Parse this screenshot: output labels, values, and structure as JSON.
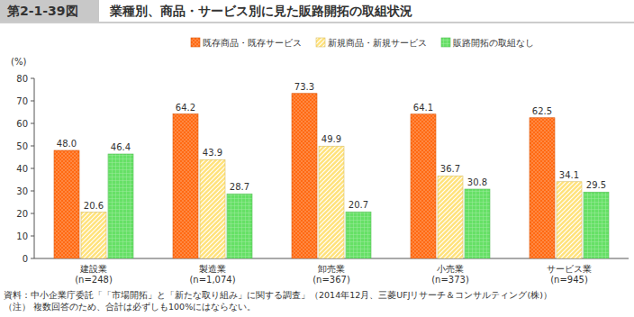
{
  "chart_data": {
    "type": "bar",
    "figure_label": "第2-1-39図",
    "title": "業種別、商品・サービス別に見た販路開拓の取組状況",
    "ylabel": "(%)",
    "categories": [
      "建設業\n(n=248)",
      "製造業\n(n=1,074)",
      "卸売業\n(n=367)",
      "小売業\n(n=373)",
      "サービス業\n(n=945)"
    ],
    "series": [
      {
        "name": "既存商品・既存サービス",
        "color": "#ff6a13",
        "values": [
          48.0,
          64.2,
          73.3,
          64.1,
          62.5
        ],
        "value_labels": [
          "48.0",
          "64.2",
          "73.3",
          "64.1",
          "62.5"
        ]
      },
      {
        "name": "新規商品・新規サービス",
        "color": "#ffe27a",
        "values": [
          20.6,
          43.9,
          49.9,
          36.7,
          34.1
        ],
        "value_labels": [
          "20.6",
          "43.9",
          "49.9",
          "36.7",
          "34.1"
        ]
      },
      {
        "name": "販路開拓の取組なし",
        "color": "#66e066",
        "values": [
          46.4,
          28.7,
          20.7,
          30.8,
          29.5
        ],
        "value_labels": [
          "46.4",
          "28.7",
          "20.7",
          "30.8",
          "29.5"
        ]
      }
    ],
    "ylim": [
      0,
      80
    ],
    "yticks": [
      0,
      10,
      20,
      30,
      40,
      50,
      60,
      70,
      80
    ],
    "grid": false,
    "data_labels": true,
    "legend": "top",
    "annotations": [
      "資料：中小企業庁委託「「市場開拓」と「新たな取り組み」に関する調査」（2014年12月、三菱UFJリサーチ＆コンサルティング(株)）",
      "（注） 複数回答のため、合計は必ずしも100%にはならない。"
    ]
  }
}
